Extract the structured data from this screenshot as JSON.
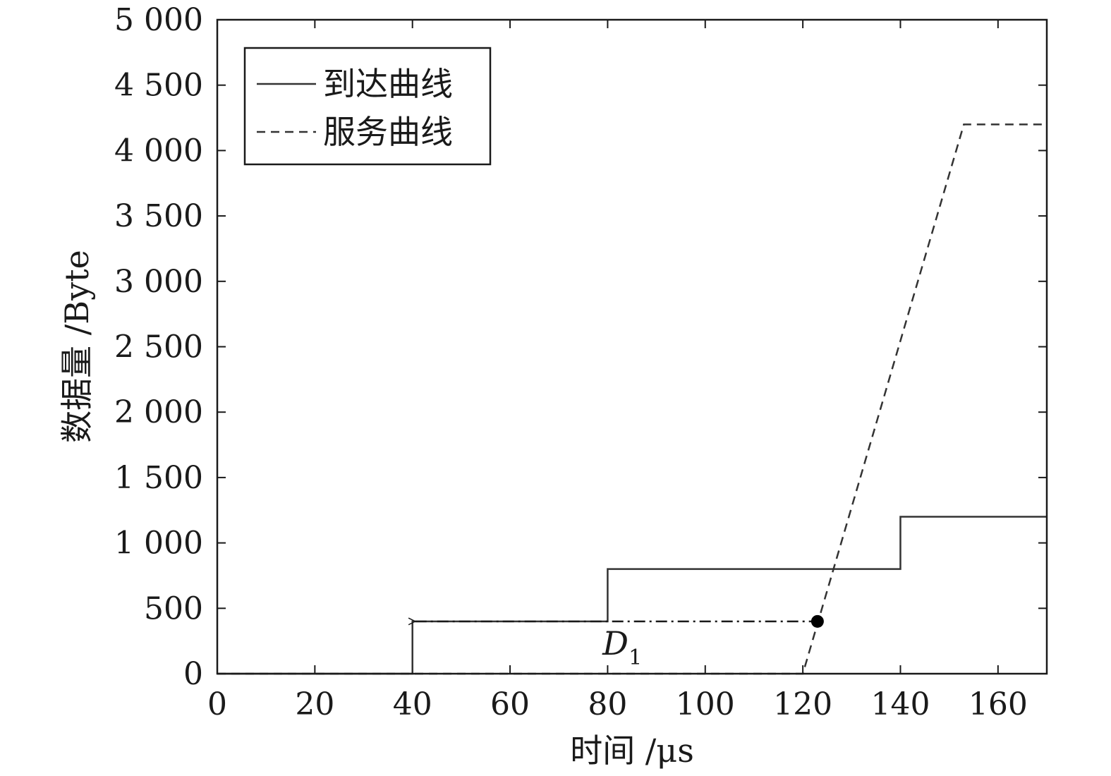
{
  "chart_data": {
    "type": "line",
    "title": "",
    "xlabel": "时间 /μs",
    "ylabel": "数据量 /Byte",
    "xlim": [
      0,
      170
    ],
    "ylim": [
      0,
      5000
    ],
    "x_ticks": [
      0,
      20,
      40,
      60,
      80,
      100,
      120,
      140,
      160
    ],
    "x_tick_labels": [
      "0",
      "20",
      "40",
      "60",
      "80",
      "100",
      "120",
      "140",
      "160"
    ],
    "y_ticks": [
      0,
      500,
      1000,
      1500,
      2000,
      2500,
      3000,
      3500,
      4000,
      4500,
      5000
    ],
    "y_tick_labels": [
      "0",
      "500",
      "1 000",
      "1 500",
      "2 000",
      "2 500",
      "3 000",
      "3 500",
      "4 000",
      "4 500",
      "5 000"
    ],
    "grid": false,
    "legend_position": "top-left",
    "series": [
      {
        "name": "到达曲线",
        "style": "solid",
        "color": "#333333",
        "points": [
          [
            0,
            0
          ],
          [
            40,
            0
          ],
          [
            40,
            400
          ],
          [
            80,
            400
          ],
          [
            80,
            800
          ],
          [
            140,
            800
          ],
          [
            140,
            1200
          ],
          [
            170,
            1200
          ]
        ]
      },
      {
        "name": "服务曲线",
        "style": "dashed",
        "color": "#333333",
        "points": [
          [
            0,
            0
          ],
          [
            120,
            0
          ],
          [
            153,
            4200
          ],
          [
            170,
            4200
          ]
        ]
      }
    ],
    "annotations": [
      {
        "type": "double-arrow",
        "style": "dash-dot",
        "from": [
          40,
          400
        ],
        "to": [
          123,
          400
        ],
        "label": "D",
        "label_subscript": "1",
        "label_at": [
          83,
          200
        ],
        "marker_at": [
          123,
          400
        ]
      }
    ]
  }
}
